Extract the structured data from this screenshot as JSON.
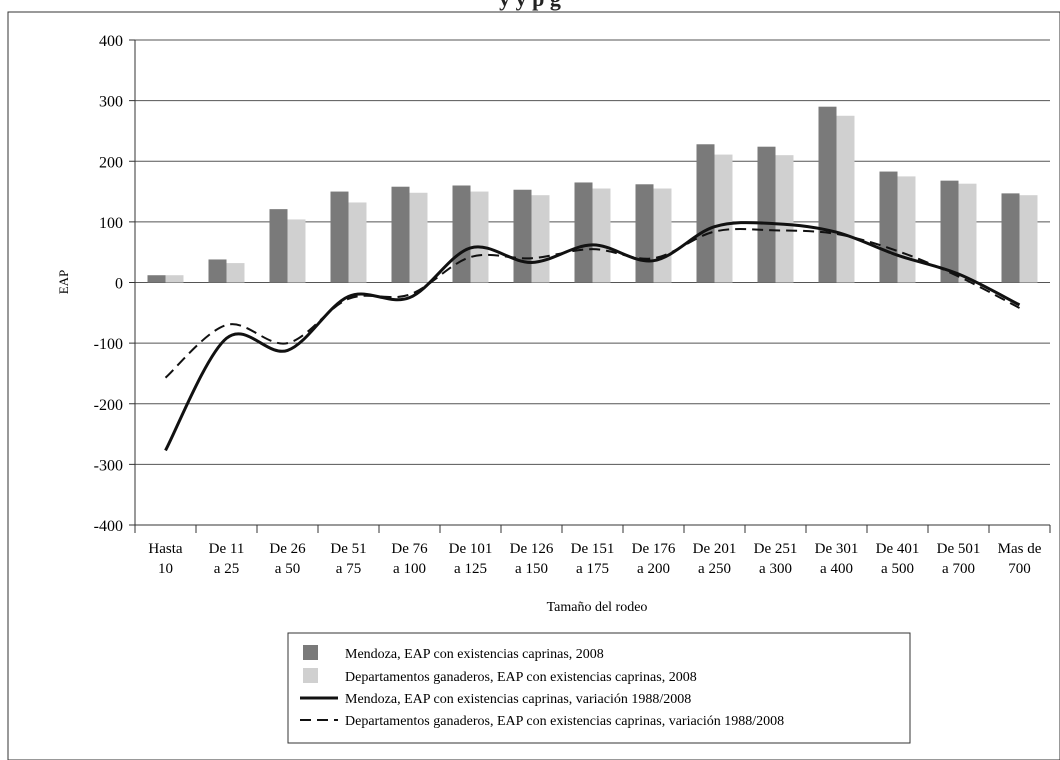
{
  "top_title": "y                                                                                                           y              p                  g",
  "chart_data": {
    "type": "bar",
    "xlabel": "Tamaño del rodeo",
    "ylabel": "EAP",
    "ylim": [
      -400,
      400
    ],
    "yticks": [
      "400",
      "300",
      "200",
      "100",
      "0",
      "-100",
      "-200",
      "-300",
      "-400"
    ],
    "grid": true,
    "legend_position": "bottom",
    "categories": [
      [
        "Hasta",
        "10"
      ],
      [
        "De 11",
        "a 25"
      ],
      [
        "De 26",
        "a 50"
      ],
      [
        "De 51",
        "a 75"
      ],
      [
        "De 76",
        "a 100"
      ],
      [
        "De 101",
        "a 125"
      ],
      [
        "De 126",
        "a 150"
      ],
      [
        "De 151",
        "a 175"
      ],
      [
        "De 176",
        "a 200"
      ],
      [
        "De 201",
        "a 250"
      ],
      [
        "De 251",
        "a 300"
      ],
      [
        "De 301",
        "a 400"
      ],
      [
        "De 401",
        "a 500"
      ],
      [
        "De 501",
        "a 700"
      ],
      [
        "Mas de",
        "700"
      ]
    ],
    "bar_series": [
      {
        "name": "Mendoza, EAP con existencias caprinas, 2008",
        "color": "#7a7a7a",
        "values": [
          12,
          38,
          121,
          150,
          158,
          160,
          153,
          165,
          162,
          228,
          224,
          290,
          183,
          168,
          147
        ]
      },
      {
        "name": "Departamentos ganaderos, EAP con existencias caprinas, 2008",
        "color": "#d0d0d0",
        "values": [
          12,
          32,
          104,
          132,
          148,
          150,
          144,
          155,
          155,
          211,
          210,
          275,
          175,
          163,
          144
        ]
      }
    ],
    "line_series": [
      {
        "name": "Mendoza, EAP con existencias caprinas, variación 1988/2008",
        "style": "solid",
        "color": "#111111",
        "values": [
          -277,
          -92,
          -112,
          -23,
          -25,
          57,
          33,
          62,
          36,
          92,
          97,
          83,
          45,
          14,
          -37
        ]
      },
      {
        "name": "Departamentos ganaderos, EAP con existencias caprinas, variación 1988/2008",
        "style": "dashed",
        "color": "#111111",
        "values": [
          -157,
          -70,
          -100,
          -27,
          -20,
          42,
          40,
          55,
          40,
          84,
          86,
          80,
          52,
          10,
          -42
        ]
      }
    ]
  }
}
